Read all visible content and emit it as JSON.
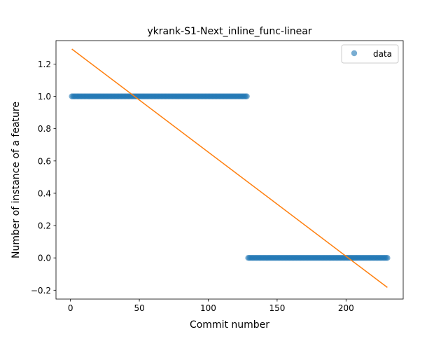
{
  "chart_data": {
    "type": "scatter",
    "title": "ykrank-S1-Next_inline_func-linear",
    "xlabel": "Commit number",
    "ylabel": "Number of instance of a feature",
    "xlim": [
      -10.5,
      241.5
    ],
    "ylim": [
      -0.255,
      1.345
    ],
    "x_ticks": [
      0,
      50,
      100,
      150,
      200
    ],
    "x_tick_labels": [
      "0",
      "50",
      "100",
      "150",
      "200"
    ],
    "y_ticks": [
      -0.2,
      0.0,
      0.2,
      0.4,
      0.6,
      0.8,
      1.0,
      1.2
    ],
    "y_tick_labels": [
      "−0.2",
      "0.0",
      "0.2",
      "0.4",
      "0.6",
      "0.8",
      "1.0",
      "1.2"
    ],
    "grid": false,
    "legend_position": "top-right",
    "series": [
      {
        "name": "data",
        "kind": "scatter",
        "color": "#1f77b4",
        "segments": [
          {
            "x_start": 1,
            "x_end": 128,
            "y": 1.0
          },
          {
            "x_start": 129,
            "x_end": 230,
            "y": 0.0
          }
        ]
      },
      {
        "kind": "line",
        "color": "#ff7f0e",
        "x": [
          1,
          230
        ],
        "y": [
          1.293,
          -0.183
        ]
      }
    ]
  }
}
